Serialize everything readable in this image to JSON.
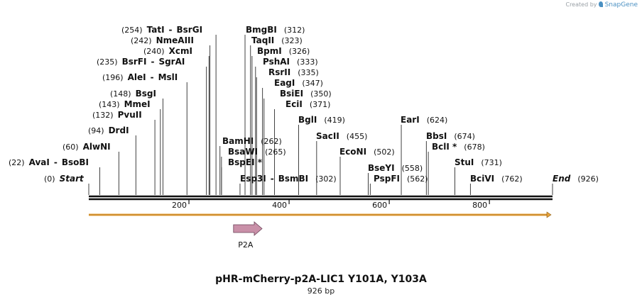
{
  "credit": {
    "prefix": "Created by",
    "brand": "SnapGene",
    "icon": "snapgene-logo-icon"
  },
  "plasmid": {
    "name": "pHR-mCherry-p2A-LIC1 Y101A, Y103A",
    "length_label": "926 bp",
    "length": 926
  },
  "scale": {
    "ticks": [
      200,
      400,
      600,
      800
    ]
  },
  "colors": {
    "backbone": "#111111",
    "orf": "#e8a33c",
    "feature": "#c990a8",
    "line": "#111111"
  },
  "features": [
    {
      "name": "P2A",
      "start": 289,
      "end": 346,
      "direction": "forward"
    }
  ],
  "sites": [
    {
      "text": [
        "(0)",
        "Start"
      ],
      "pos": 0,
      "italic": true
    },
    {
      "text": [
        "(22)",
        "AvaI",
        "-",
        "BsoBI"
      ],
      "pos": 22
    },
    {
      "text": [
        "(60)",
        "AlwNI"
      ],
      "pos": 60
    },
    {
      "text": [
        "(94)",
        "DrdI"
      ],
      "pos": 94
    },
    {
      "text": [
        "(132)",
        "PvuII"
      ],
      "pos": 132
    },
    {
      "text": [
        "(143)",
        "MmeI"
      ],
      "pos": 143
    },
    {
      "text": [
        "(148)",
        "BsgI"
      ],
      "pos": 148
    },
    {
      "text": [
        "(196)",
        "AleI",
        "-",
        "MslI"
      ],
      "pos": 196
    },
    {
      "text": [
        "(235)",
        "BsrFI",
        "-",
        "SgrAI"
      ],
      "pos": 235
    },
    {
      "text": [
        "(240)",
        "XcmI"
      ],
      "pos": 240
    },
    {
      "text": [
        "(242)",
        "NmeAIII"
      ],
      "pos": 242
    },
    {
      "text": [
        "(254)",
        "TatI",
        "-",
        "BsrGI"
      ],
      "pos": 254
    },
    {
      "text": [
        "BamHI",
        "(262)"
      ],
      "pos": 262
    },
    {
      "text": [
        "BsaWI",
        "(265)"
      ],
      "pos": 265
    },
    {
      "text": [
        "BspEI *"
      ],
      "pos": 265
    },
    {
      "text": [
        "Esp3I",
        "-",
        "BsmBI",
        "(302)"
      ],
      "pos": 302
    },
    {
      "text": [
        "BmgBI",
        "(312)"
      ],
      "pos": 312
    },
    {
      "text": [
        "TaqII",
        "(323)"
      ],
      "pos": 323
    },
    {
      "text": [
        "BpmI",
        "(326)"
      ],
      "pos": 326
    },
    {
      "text": [
        "PshAI",
        "(333)"
      ],
      "pos": 333
    },
    {
      "text": [
        "RsrII",
        "(335)"
      ],
      "pos": 335
    },
    {
      "text": [
        "EagI",
        "(347)"
      ],
      "pos": 347
    },
    {
      "text": [
        "BsiEI",
        "(350)"
      ],
      "pos": 350
    },
    {
      "text": [
        "EciI",
        "(371)"
      ],
      "pos": 371
    },
    {
      "text": [
        "BglI",
        "(419)"
      ],
      "pos": 419
    },
    {
      "text": [
        "SacII",
        "(455)"
      ],
      "pos": 455
    },
    {
      "text": [
        "EcoNI",
        "(502)"
      ],
      "pos": 502
    },
    {
      "text": [
        "BseYI",
        "(558)"
      ],
      "pos": 558
    },
    {
      "text": [
        "PspFI",
        "(562)"
      ],
      "pos": 562
    },
    {
      "text": [
        "EarI",
        "(624)"
      ],
      "pos": 624
    },
    {
      "text": [
        "BbsI",
        "(674)"
      ],
      "pos": 674
    },
    {
      "text": [
        "BclI *",
        "(678)"
      ],
      "pos": 678
    },
    {
      "text": [
        "StuI",
        "(731)"
      ],
      "pos": 731
    },
    {
      "text": [
        "BciVI",
        "(762)"
      ],
      "pos": 762
    },
    {
      "text": [
        "End",
        "(926)"
      ],
      "pos": 926,
      "italic": true
    }
  ]
}
